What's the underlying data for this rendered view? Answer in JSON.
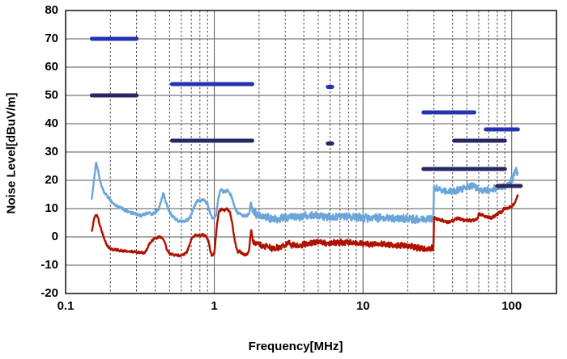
{
  "chart_data": {
    "type": "line",
    "title": "",
    "xlabel": "Frequency[MHz]",
    "ylabel": "Noise Level[dBuV/m]",
    "x_scale": "log",
    "x_range": [
      0.1,
      200
    ],
    "y_range": [
      -20,
      80
    ],
    "grid": "horizontal solid, vertical log dashed minors with solid decades",
    "legend": "none",
    "x_ticks": [
      {
        "value": 0.1,
        "label": "0.1"
      },
      {
        "value": 1,
        "label": "1"
      },
      {
        "value": 10,
        "label": "10"
      },
      {
        "value": 100,
        "label": "100"
      }
    ],
    "x_minor_gridlines": [
      0.2,
      0.3,
      0.4,
      0.5,
      0.6,
      0.7,
      0.8,
      0.9,
      2,
      3,
      4,
      5,
      6,
      7,
      8,
      9,
      20,
      30,
      40,
      50,
      60,
      70,
      80,
      90
    ],
    "y_ticks": [
      {
        "value": 80,
        "label": "80"
      },
      {
        "value": 70,
        "label": "70"
      },
      {
        "value": 60,
        "label": "60"
      },
      {
        "value": 50,
        "label": "50"
      },
      {
        "value": 40,
        "label": "40"
      },
      {
        "value": 30,
        "label": "30"
      },
      {
        "value": 20,
        "label": "20"
      },
      {
        "value": 10,
        "label": "10"
      },
      {
        "value": 0,
        "label": "0"
      },
      {
        "value": -10,
        "label": "-10"
      },
      {
        "value": -20,
        "label": "-20"
      }
    ],
    "colors": {
      "trace_blue": "#6CA6D9",
      "trace_red": "#B01200",
      "limit_bright_blue": "#2533B2",
      "limit_navy": "#272763",
      "gridline": "#555555",
      "border": "#000000",
      "background": "#FFFFFF"
    },
    "limit_lines": [
      {
        "name": "limit-70dB",
        "f1": 0.15,
        "f2": 0.3,
        "level": 70,
        "color_key": "limit_bright_blue"
      },
      {
        "name": "limit-50dB",
        "f1": 0.15,
        "f2": 0.3,
        "level": 50,
        "color_key": "limit_navy"
      },
      {
        "name": "limit-54dB",
        "f1": 0.52,
        "f2": 1.8,
        "level": 54,
        "color_key": "limit_bright_blue"
      },
      {
        "name": "limit-34dB-low",
        "f1": 0.52,
        "f2": 1.8,
        "level": 34,
        "color_key": "limit_navy"
      },
      {
        "name": "limit-53dB-spot",
        "f1": 5.8,
        "f2": 6.2,
        "level": 53,
        "color_key": "limit_bright_blue"
      },
      {
        "name": "limit-33dB-spot",
        "f1": 5.8,
        "f2": 6.2,
        "level": 33,
        "color_key": "limit_navy"
      },
      {
        "name": "limit-44dB-lead",
        "f1": 25.5,
        "f2": 29,
        "level": 44,
        "color_key": "limit_bright_blue"
      },
      {
        "name": "limit-44dB",
        "f1": 30,
        "f2": 56,
        "level": 44,
        "color_key": "limit_bright_blue"
      },
      {
        "name": "limit-24dB-lead",
        "f1": 25.5,
        "f2": 29,
        "level": 24,
        "color_key": "limit_navy"
      },
      {
        "name": "limit-24dB",
        "f1": 30,
        "f2": 90,
        "level": 24,
        "color_key": "limit_navy"
      },
      {
        "name": "limit-34dB-high",
        "f1": 41,
        "f2": 90,
        "level": 34,
        "color_key": "limit_navy"
      },
      {
        "name": "limit-38dB",
        "f1": 67,
        "f2": 110,
        "level": 38,
        "color_key": "limit_bright_blue"
      },
      {
        "name": "limit-18dB",
        "f1": 80,
        "f2": 115,
        "level": 18,
        "color_key": "limit_navy"
      }
    ],
    "series": [
      {
        "name": "noise-trace-blue",
        "color_key": "trace_blue",
        "f_start": 0.15,
        "f_end": 110,
        "noise_zones": [
          {
            "to": 1.8,
            "amp": 0.45
          },
          {
            "to": 30,
            "amp": 1.2
          },
          {
            "to": 111,
            "amp": 1.0
          }
        ],
        "points": [
          [
            0.15,
            13
          ],
          [
            0.155,
            20
          ],
          [
            0.16,
            26
          ],
          [
            0.165,
            24
          ],
          [
            0.17,
            20
          ],
          [
            0.18,
            16
          ],
          [
            0.19,
            14.5
          ],
          [
            0.2,
            13
          ],
          [
            0.22,
            11
          ],
          [
            0.24,
            10
          ],
          [
            0.26,
            9
          ],
          [
            0.28,
            8.5
          ],
          [
            0.3,
            8
          ],
          [
            0.32,
            7.5
          ],
          [
            0.34,
            8
          ],
          [
            0.36,
            8.5
          ],
          [
            0.38,
            8
          ],
          [
            0.4,
            8.5
          ],
          [
            0.42,
            9.5
          ],
          [
            0.44,
            13
          ],
          [
            0.455,
            15.5
          ],
          [
            0.47,
            12.5
          ],
          [
            0.49,
            10
          ],
          [
            0.51,
            8
          ],
          [
            0.54,
            6.5
          ],
          [
            0.58,
            5.5
          ],
          [
            0.62,
            5.5
          ],
          [
            0.66,
            6
          ],
          [
            0.69,
            7
          ],
          [
            0.72,
            9.5
          ],
          [
            0.75,
            12
          ],
          [
            0.78,
            13
          ],
          [
            0.81,
            12.5
          ],
          [
            0.84,
            13.5
          ],
          [
            0.87,
            12.5
          ],
          [
            0.9,
            11.5
          ],
          [
            0.93,
            9
          ],
          [
            0.96,
            7
          ],
          [
            1.0,
            6.5
          ],
          [
            1.03,
            8
          ],
          [
            1.06,
            13
          ],
          [
            1.1,
            17
          ],
          [
            1.14,
            16
          ],
          [
            1.18,
            16
          ],
          [
            1.22,
            16.5
          ],
          [
            1.26,
            15.5
          ],
          [
            1.3,
            14.5
          ],
          [
            1.34,
            12.5
          ],
          [
            1.38,
            10
          ],
          [
            1.43,
            8.5
          ],
          [
            1.5,
            8
          ],
          [
            1.58,
            7.5
          ],
          [
            1.66,
            7.5
          ],
          [
            1.72,
            8.5
          ],
          [
            1.76,
            12.5
          ],
          [
            1.8,
            10
          ],
          [
            1.86,
            8.5
          ],
          [
            1.95,
            8
          ],
          [
            2.1,
            7.5
          ],
          [
            2.3,
            6.8
          ],
          [
            2.5,
            6.2
          ],
          [
            2.8,
            6.5
          ],
          [
            3.2,
            7
          ],
          [
            3.7,
            7
          ],
          [
            4.2,
            7.5
          ],
          [
            4.8,
            7.8
          ],
          [
            5.5,
            7.2
          ],
          [
            6.5,
            7
          ],
          [
            7.5,
            7.2
          ],
          [
            8.5,
            7
          ],
          [
            10,
            6.8
          ],
          [
            12,
            6.6
          ],
          [
            14,
            6.8
          ],
          [
            17,
            6.5
          ],
          [
            20,
            6.3
          ],
          [
            24,
            6.2
          ],
          [
            28,
            6.3
          ],
          [
            29.8,
            6.5
          ],
          [
            30,
            17.3
          ],
          [
            32,
            17
          ],
          [
            34,
            16.6
          ],
          [
            37,
            16.2
          ],
          [
            40,
            16
          ],
          [
            43,
            16.4
          ],
          [
            47,
            17
          ],
          [
            51,
            17.8
          ],
          [
            55,
            18.2
          ],
          [
            58,
            17.4
          ],
          [
            62,
            16.6
          ],
          [
            66,
            16.4
          ],
          [
            71,
            16.6
          ],
          [
            76,
            17
          ],
          [
            81,
            17.2
          ],
          [
            86,
            17.5
          ],
          [
            90,
            17.8
          ],
          [
            94,
            18.5
          ],
          [
            98,
            19.5
          ],
          [
            101,
            20.5
          ],
          [
            104,
            22
          ],
          [
            106,
            23.5
          ],
          [
            108,
            24
          ],
          [
            109,
            22.5
          ],
          [
            110,
            21.5
          ]
        ]
      },
      {
        "name": "noise-trace-red",
        "color_key": "trace_red",
        "f_start": 0.15,
        "f_end": 110,
        "noise_zones": [
          {
            "to": 1.8,
            "amp": 0.35
          },
          {
            "to": 30,
            "amp": 0.9
          },
          {
            "to": 88,
            "amp": 0.45
          },
          {
            "to": 111,
            "amp": 0.35
          }
        ],
        "points": [
          [
            0.15,
            2
          ],
          [
            0.155,
            6
          ],
          [
            0.16,
            8
          ],
          [
            0.165,
            7
          ],
          [
            0.17,
            4
          ],
          [
            0.18,
            0
          ],
          [
            0.19,
            -3
          ],
          [
            0.2,
            -4.3
          ],
          [
            0.22,
            -4.6
          ],
          [
            0.25,
            -5
          ],
          [
            0.28,
            -5.2
          ],
          [
            0.31,
            -5.5
          ],
          [
            0.34,
            -5.6
          ],
          [
            0.355,
            -4
          ],
          [
            0.37,
            -2
          ],
          [
            0.39,
            -0.8
          ],
          [
            0.41,
            -0.3
          ],
          [
            0.43,
            0
          ],
          [
            0.45,
            -0.5
          ],
          [
            0.465,
            -2
          ],
          [
            0.48,
            -4.5
          ],
          [
            0.5,
            -6
          ],
          [
            0.54,
            -6.4
          ],
          [
            0.58,
            -6.6
          ],
          [
            0.62,
            -6.3
          ],
          [
            0.65,
            -5.5
          ],
          [
            0.68,
            -3
          ],
          [
            0.7,
            -0.8
          ],
          [
            0.73,
            0.3
          ],
          [
            0.76,
            0.8
          ],
          [
            0.8,
            0.4
          ],
          [
            0.84,
            0.9
          ],
          [
            0.88,
            0.3
          ],
          [
            0.91,
            -1
          ],
          [
            0.94,
            -5
          ],
          [
            0.97,
            -7
          ],
          [
            1.0,
            -5.5
          ],
          [
            1.02,
            -1
          ],
          [
            1.05,
            6
          ],
          [
            1.08,
            9
          ],
          [
            1.12,
            9.8
          ],
          [
            1.16,
            9.3
          ],
          [
            1.2,
            10
          ],
          [
            1.24,
            9.4
          ],
          [
            1.28,
            8.3
          ],
          [
            1.32,
            5
          ],
          [
            1.36,
            0
          ],
          [
            1.4,
            -3.5
          ],
          [
            1.44,
            -5.3
          ],
          [
            1.48,
            -5
          ],
          [
            1.54,
            -5.8
          ],
          [
            1.6,
            -6.4
          ],
          [
            1.66,
            -6.2
          ],
          [
            1.71,
            -5
          ],
          [
            1.74,
            -1
          ],
          [
            1.77,
            3
          ],
          [
            1.8,
            -0.5
          ],
          [
            1.84,
            -1.8
          ],
          [
            1.9,
            -2.3
          ],
          [
            2.0,
            -2.6
          ],
          [
            2.2,
            -3.3
          ],
          [
            2.45,
            -4
          ],
          [
            2.7,
            -3.7
          ],
          [
            3.0,
            -3
          ],
          [
            3.15,
            -1.8
          ],
          [
            3.3,
            -2.8
          ],
          [
            3.6,
            -3
          ],
          [
            4.0,
            -2.6
          ],
          [
            4.4,
            -2.2
          ],
          [
            4.8,
            -1.8
          ],
          [
            5.3,
            -2.2
          ],
          [
            6.0,
            -2.2
          ],
          [
            7.0,
            -2
          ],
          [
            8.0,
            -1.9
          ],
          [
            9.0,
            -2.1
          ],
          [
            10,
            -2.3
          ],
          [
            12,
            -2.6
          ],
          [
            14,
            -2.6
          ],
          [
            16,
            -2.9
          ],
          [
            18,
            -3
          ],
          [
            20,
            -3.2
          ],
          [
            23,
            -3.8
          ],
          [
            26,
            -4.3
          ],
          [
            28,
            -4.4
          ],
          [
            29.8,
            -3.8
          ],
          [
            30,
            6.8
          ],
          [
            32,
            6.2
          ],
          [
            34,
            5.8
          ],
          [
            36,
            5.4
          ],
          [
            38,
            5.2
          ],
          [
            40,
            5.6
          ],
          [
            43,
            6.6
          ],
          [
            45,
            6.4
          ],
          [
            47,
            5.9
          ],
          [
            50,
            5.9
          ],
          [
            54,
            5.8
          ],
          [
            58,
            5.9
          ],
          [
            60,
            8
          ],
          [
            63,
            7.8
          ],
          [
            66,
            7.4
          ],
          [
            70,
            7
          ],
          [
            73,
            6.8
          ],
          [
            77,
            7.4
          ],
          [
            81,
            8.4
          ],
          [
            85,
            8.8
          ],
          [
            87,
            9.2
          ],
          [
            88,
            10
          ],
          [
            92,
            10
          ],
          [
            96,
            10.3
          ],
          [
            100,
            10.8
          ],
          [
            103,
            11.4
          ],
          [
            106,
            12.5
          ],
          [
            108,
            13.8
          ],
          [
            109.5,
            14.8
          ],
          [
            110,
            14.3
          ]
        ]
      }
    ]
  }
}
